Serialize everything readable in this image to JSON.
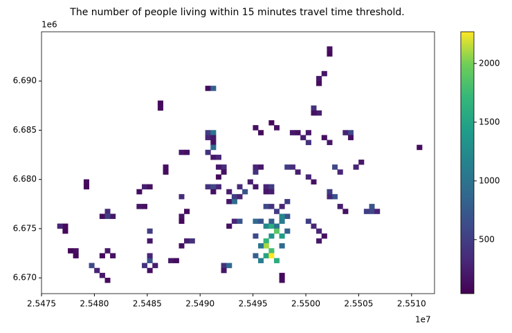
{
  "chart_data": {
    "type": "heatmap",
    "title": "The number of people living within 15 minutes travel time threshold.",
    "x_offset_label": "1e7",
    "y_offset_label": "1e6",
    "xlim": [
      25475000,
      25512170
    ],
    "ylim": [
      6668400,
      6695000
    ],
    "xticks": [
      {
        "value": 25475000,
        "label": "2.5475"
      },
      {
        "value": 25480000,
        "label": "2.5480"
      },
      {
        "value": 25485000,
        "label": "2.5485"
      },
      {
        "value": 25490000,
        "label": "2.5490"
      },
      {
        "value": 25495000,
        "label": "2.5495"
      },
      {
        "value": 25500000,
        "label": "2.5500"
      },
      {
        "value": 25505000,
        "label": "2.5505"
      },
      {
        "value": 25510000,
        "label": "2.5510"
      }
    ],
    "yticks": [
      {
        "value": 6670000,
        "label": "6.670"
      },
      {
        "value": 6675000,
        "label": "6.675"
      },
      {
        "value": 6680000,
        "label": "6.680"
      },
      {
        "value": 6685000,
        "label": "6.685"
      },
      {
        "value": 6690000,
        "label": "6.690"
      }
    ],
    "clim": [
      40,
      2270
    ],
    "cticks": [
      500,
      1000,
      1500,
      2000
    ],
    "colormap": "viridis",
    "cells": [
      {
        "x": 25477250,
        "y": 6675250,
        "value": 120
      },
      {
        "x": 25476750,
        "y": 6675250,
        "value": 300
      },
      {
        "x": 25477250,
        "y": 6674750,
        "value": 90
      },
      {
        "x": 25478250,
        "y": 6672750,
        "value": 150
      },
      {
        "x": 25478250,
        "y": 6672250,
        "value": 100
      },
      {
        "x": 25477750,
        "y": 6672750,
        "value": 80
      },
      {
        "x": 25479250,
        "y": 6679750,
        "value": 110
      },
      {
        "x": 25479250,
        "y": 6679250,
        "value": 90
      },
      {
        "x": 25481250,
        "y": 6676750,
        "value": 350
      },
      {
        "x": 25481750,
        "y": 6676250,
        "value": 200
      },
      {
        "x": 25480750,
        "y": 6676250,
        "value": 120
      },
      {
        "x": 25481250,
        "y": 6676250,
        "value": 500
      },
      {
        "x": 25481250,
        "y": 6672750,
        "value": 200
      },
      {
        "x": 25481750,
        "y": 6672250,
        "value": 150
      },
      {
        "x": 25480750,
        "y": 6672250,
        "value": 100
      },
      {
        "x": 25480250,
        "y": 6670750,
        "value": 300
      },
      {
        "x": 25480750,
        "y": 6670250,
        "value": 200
      },
      {
        "x": 25481250,
        "y": 6669750,
        "value": 120
      },
      {
        "x": 25479750,
        "y": 6671250,
        "value": 600
      },
      {
        "x": 25484750,
        "y": 6679250,
        "value": 250
      },
      {
        "x": 25485250,
        "y": 6679250,
        "value": 150
      },
      {
        "x": 25484250,
        "y": 6678750,
        "value": 120
      },
      {
        "x": 25484250,
        "y": 6677250,
        "value": 200
      },
      {
        "x": 25484750,
        "y": 6677250,
        "value": 150
      },
      {
        "x": 25486250,
        "y": 6687750,
        "value": 90
      },
      {
        "x": 25486250,
        "y": 6687250,
        "value": 120
      },
      {
        "x": 25486750,
        "y": 6681250,
        "value": 140
      },
      {
        "x": 25486750,
        "y": 6680750,
        "value": 110
      },
      {
        "x": 25485250,
        "y": 6671750,
        "value": 700
      },
      {
        "x": 25484750,
        "y": 6671250,
        "value": 400
      },
      {
        "x": 25485750,
        "y": 6671250,
        "value": 250
      },
      {
        "x": 25485250,
        "y": 6670750,
        "value": 150
      },
      {
        "x": 25485250,
        "y": 6672250,
        "value": 300
      },
      {
        "x": 25485250,
        "y": 6674750,
        "value": 500
      },
      {
        "x": 25485250,
        "y": 6673750,
        "value": 200
      },
      {
        "x": 25487250,
        "y": 6671750,
        "value": 200
      },
      {
        "x": 25487750,
        "y": 6671750,
        "value": 120
      },
      {
        "x": 25488250,
        "y": 6676250,
        "value": 180
      },
      {
        "x": 25488750,
        "y": 6676750,
        "value": 120
      },
      {
        "x": 25488250,
        "y": 6675750,
        "value": 90
      },
      {
        "x": 25488750,
        "y": 6673750,
        "value": 250
      },
      {
        "x": 25489250,
        "y": 6673750,
        "value": 400
      },
      {
        "x": 25488250,
        "y": 6673250,
        "value": 130
      },
      {
        "x": 25488250,
        "y": 6682750,
        "value": 200
      },
      {
        "x": 25488750,
        "y": 6682750,
        "value": 150
      },
      {
        "x": 25488250,
        "y": 6678250,
        "value": 350
      },
      {
        "x": 25490750,
        "y": 6689250,
        "value": 120
      },
      {
        "x": 25491250,
        "y": 6689250,
        "value": 800
      },
      {
        "x": 25502250,
        "y": 6693250,
        "value": 150
      },
      {
        "x": 25502250,
        "y": 6692750,
        "value": 100
      },
      {
        "x": 25501250,
        "y": 6690250,
        "value": 200
      },
      {
        "x": 25501750,
        "y": 6690750,
        "value": 180
      },
      {
        "x": 25501250,
        "y": 6689750,
        "value": 120
      },
      {
        "x": 25500750,
        "y": 6687250,
        "value": 400
      },
      {
        "x": 25501250,
        "y": 6686750,
        "value": 250
      },
      {
        "x": 25500750,
        "y": 6686750,
        "value": 150
      },
      {
        "x": 25510750,
        "y": 6683250,
        "value": 120
      },
      {
        "x": 25504250,
        "y": 6684750,
        "value": 600
      },
      {
        "x": 25503750,
        "y": 6684750,
        "value": 300
      },
      {
        "x": 25504250,
        "y": 6684250,
        "value": 150
      },
      {
        "x": 25490750,
        "y": 6684750,
        "value": 500
      },
      {
        "x": 25491250,
        "y": 6684750,
        "value": 1000
      },
      {
        "x": 25490750,
        "y": 6684250,
        "value": 300
      },
      {
        "x": 25491250,
        "y": 6684250,
        "value": 200
      },
      {
        "x": 25491250,
        "y": 6683750,
        "value": 150
      },
      {
        "x": 25491250,
        "y": 6683250,
        "value": 900
      },
      {
        "x": 25490750,
        "y": 6682750,
        "value": 400
      },
      {
        "x": 25491250,
        "y": 6682250,
        "value": 200
      },
      {
        "x": 25491750,
        "y": 6682250,
        "value": 300
      },
      {
        "x": 25492250,
        "y": 6681250,
        "value": 350
      },
      {
        "x": 25491750,
        "y": 6681250,
        "value": 200
      },
      {
        "x": 25492250,
        "y": 6680750,
        "value": 150
      },
      {
        "x": 25491750,
        "y": 6680250,
        "value": 100
      },
      {
        "x": 25490750,
        "y": 6679250,
        "value": 400
      },
      {
        "x": 25491250,
        "y": 6679250,
        "value": 600
      },
      {
        "x": 25491750,
        "y": 6679250,
        "value": 300
      },
      {
        "x": 25491250,
        "y": 6678750,
        "value": 150
      },
      {
        "x": 25492750,
        "y": 6678750,
        "value": 250
      },
      {
        "x": 25493250,
        "y": 6678250,
        "value": 500
      },
      {
        "x": 25492750,
        "y": 6677750,
        "value": 200
      },
      {
        "x": 25493250,
        "y": 6677750,
        "value": 900
      },
      {
        "x": 25493250,
        "y": 6675750,
        "value": 300
      },
      {
        "x": 25493750,
        "y": 6675750,
        "value": 700
      },
      {
        "x": 25492750,
        "y": 6675250,
        "value": 150
      },
      {
        "x": 25492250,
        "y": 6671250,
        "value": 400
      },
      {
        "x": 25492750,
        "y": 6671250,
        "value": 900
      },
      {
        "x": 25492250,
        "y": 6670750,
        "value": 200
      },
      {
        "x": 25495250,
        "y": 6685250,
        "value": 150
      },
      {
        "x": 25495750,
        "y": 6684750,
        "value": 100
      },
      {
        "x": 25495250,
        "y": 6681250,
        "value": 300
      },
      {
        "x": 25495750,
        "y": 6681250,
        "value": 200
      },
      {
        "x": 25495250,
        "y": 6680750,
        "value": 400
      },
      {
        "x": 25493750,
        "y": 6679250,
        "value": 350
      },
      {
        "x": 25494250,
        "y": 6678750,
        "value": 700
      },
      {
        "x": 25493750,
        "y": 6678250,
        "value": 300
      },
      {
        "x": 25494750,
        "y": 6679750,
        "value": 250
      },
      {
        "x": 25495250,
        "y": 6679250,
        "value": 200
      },
      {
        "x": 25496250,
        "y": 6679250,
        "value": 300
      },
      {
        "x": 25496750,
        "y": 6679250,
        "value": 500
      },
      {
        "x": 25496250,
        "y": 6678750,
        "value": 200
      },
      {
        "x": 25496750,
        "y": 6678750,
        "value": 250
      },
      {
        "x": 25496750,
        "y": 6685750,
        "value": 100
      },
      {
        "x": 25497250,
        "y": 6685250,
        "value": 150
      },
      {
        "x": 25498750,
        "y": 6684750,
        "value": 200
      },
      {
        "x": 25499250,
        "y": 6684750,
        "value": 150
      },
      {
        "x": 25499750,
        "y": 6684250,
        "value": 250
      },
      {
        "x": 25500250,
        "y": 6683750,
        "value": 400
      },
      {
        "x": 25500250,
        "y": 6684750,
        "value": 200
      },
      {
        "x": 25501750,
        "y": 6684250,
        "value": 150
      },
      {
        "x": 25502250,
        "y": 6683750,
        "value": 200
      },
      {
        "x": 25498250,
        "y": 6681250,
        "value": 500
      },
      {
        "x": 25498750,
        "y": 6681250,
        "value": 350
      },
      {
        "x": 25499250,
        "y": 6680750,
        "value": 250
      },
      {
        "x": 25500250,
        "y": 6680250,
        "value": 300
      },
      {
        "x": 25500750,
        "y": 6679750,
        "value": 150
      },
      {
        "x": 25502750,
        "y": 6681250,
        "value": 600
      },
      {
        "x": 25503250,
        "y": 6680750,
        "value": 300
      },
      {
        "x": 25502250,
        "y": 6678750,
        "value": 500
      },
      {
        "x": 25502750,
        "y": 6678250,
        "value": 700
      },
      {
        "x": 25502250,
        "y": 6678250,
        "value": 300
      },
      {
        "x": 25503250,
        "y": 6677250,
        "value": 250
      },
      {
        "x": 25503750,
        "y": 6676750,
        "value": 150
      },
      {
        "x": 25506250,
        "y": 6677250,
        "value": 700
      },
      {
        "x": 25506250,
        "y": 6676750,
        "value": 600
      },
      {
        "x": 25506750,
        "y": 6676750,
        "value": 300
      },
      {
        "x": 25505750,
        "y": 6676750,
        "value": 500
      },
      {
        "x": 25505250,
        "y": 6681750,
        "value": 200
      },
      {
        "x": 25504750,
        "y": 6681250,
        "value": 300
      },
      {
        "x": 25501250,
        "y": 6674750,
        "value": 300
      },
      {
        "x": 25501250,
        "y": 6673750,
        "value": 200
      },
      {
        "x": 25501750,
        "y": 6674250,
        "value": 150
      },
      {
        "x": 25500250,
        "y": 6675750,
        "value": 500
      },
      {
        "x": 25500750,
        "y": 6675250,
        "value": 300
      },
      {
        "x": 25497750,
        "y": 6670250,
        "value": 100
      },
      {
        "x": 25497750,
        "y": 6669750,
        "value": 120
      },
      {
        "x": 25495250,
        "y": 6675750,
        "value": 900
      },
      {
        "x": 25495750,
        "y": 6675750,
        "value": 700
      },
      {
        "x": 25496250,
        "y": 6675250,
        "value": 1200
      },
      {
        "x": 25496750,
        "y": 6675250,
        "value": 1600
      },
      {
        "x": 25497250,
        "y": 6675250,
        "value": 1000
      },
      {
        "x": 25496750,
        "y": 6675750,
        "value": 800
      },
      {
        "x": 25497250,
        "y": 6674750,
        "value": 1900
      },
      {
        "x": 25497750,
        "y": 6674250,
        "value": 1400
      },
      {
        "x": 25496750,
        "y": 6674250,
        "value": 1300
      },
      {
        "x": 25496250,
        "y": 6673750,
        "value": 1700
      },
      {
        "x": 25496250,
        "y": 6673250,
        "value": 2100
      },
      {
        "x": 25496750,
        "y": 6672750,
        "value": 1800
      },
      {
        "x": 25496250,
        "y": 6672250,
        "value": 1500
      },
      {
        "x": 25496750,
        "y": 6672250,
        "value": 2270
      },
      {
        "x": 25497250,
        "y": 6671750,
        "value": 1600
      },
      {
        "x": 25495750,
        "y": 6671750,
        "value": 1100
      },
      {
        "x": 25495250,
        "y": 6672250,
        "value": 800
      },
      {
        "x": 25495750,
        "y": 6673250,
        "value": 1000
      },
      {
        "x": 25495250,
        "y": 6674250,
        "value": 600
      },
      {
        "x": 25497750,
        "y": 6673250,
        "value": 900
      },
      {
        "x": 25497750,
        "y": 6675750,
        "value": 1100
      },
      {
        "x": 25498250,
        "y": 6676250,
        "value": 700
      },
      {
        "x": 25497250,
        "y": 6676750,
        "value": 500
      },
      {
        "x": 25496750,
        "y": 6677250,
        "value": 400
      },
      {
        "x": 25496250,
        "y": 6677250,
        "value": 600
      },
      {
        "x": 25497750,
        "y": 6677250,
        "value": 300
      },
      {
        "x": 25498250,
        "y": 6677750,
        "value": 500
      },
      {
        "x": 25498250,
        "y": 6674750,
        "value": 800
      },
      {
        "x": 25497750,
        "y": 6676250,
        "value": 1200
      }
    ]
  }
}
